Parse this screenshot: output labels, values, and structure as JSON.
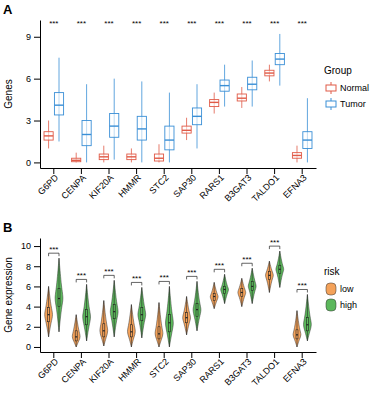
{
  "chart_data": [
    {
      "type": "box",
      "title": "A",
      "y_label": "Genes",
      "categories": [
        "G6PD",
        "CENPA",
        "KIF20A",
        "HMMR",
        "STC2",
        "SAP30",
        "RARS1",
        "B3GAT3",
        "TALDO1",
        "EFNA3"
      ],
      "legend": "right",
      "legend_title": "Group",
      "annotations": [
        "***",
        "***",
        "***",
        "***",
        "***",
        "***",
        "***",
        "***",
        "***",
        "***"
      ],
      "ylim": [
        -0.4,
        10.2
      ],
      "yticks": [
        0,
        3,
        6,
        9
      ],
      "series": [
        {
          "name": "Normal",
          "color": "#e05a47",
          "values": [
            {
              "min": 1.0,
              "q1": 1.6,
              "median": 1.9,
              "q3": 2.2,
              "max": 3.0
            },
            {
              "min": 0,
              "q1": 0.05,
              "median": 0.15,
              "q3": 0.3,
              "max": 0.7
            },
            {
              "min": 0,
              "q1": 0.2,
              "median": 0.4,
              "q3": 0.6,
              "max": 1.2
            },
            {
              "min": 0,
              "q1": 0.2,
              "median": 0.4,
              "q3": 0.6,
              "max": 1.0
            },
            {
              "min": 0,
              "q1": 0.1,
              "median": 0.3,
              "q3": 0.6,
              "max": 1.3
            },
            {
              "min": 1.6,
              "q1": 2.1,
              "median": 2.3,
              "q3": 2.6,
              "max": 3.2
            },
            {
              "min": 3.5,
              "q1": 4.0,
              "median": 4.3,
              "q3": 4.5,
              "max": 5.0
            },
            {
              "min": 3.9,
              "q1": 4.4,
              "median": 4.6,
              "q3": 4.9,
              "max": 5.4
            },
            {
              "min": 5.8,
              "q1": 6.2,
              "median": 6.4,
              "q3": 6.6,
              "max": 7.0
            },
            {
              "min": 0,
              "q1": 0.3,
              "median": 0.5,
              "q3": 0.7,
              "max": 1.2
            }
          ]
        },
        {
          "name": "Tumor",
          "color": "#3a8fd6",
          "values": [
            {
              "min": 1.5,
              "q1": 3.4,
              "median": 4.1,
              "q3": 5.0,
              "max": 7.5
            },
            {
              "min": 0,
              "q1": 1.2,
              "median": 2.0,
              "q3": 3.0,
              "max": 5.6
            },
            {
              "min": 0.2,
              "q1": 1.8,
              "median": 2.6,
              "q3": 3.5,
              "max": 6.0
            },
            {
              "min": 0,
              "q1": 1.6,
              "median": 2.4,
              "q3": 3.3,
              "max": 5.8
            },
            {
              "min": 0,
              "q1": 0.9,
              "median": 1.6,
              "q3": 2.6,
              "max": 5.0
            },
            {
              "min": 1.0,
              "q1": 2.7,
              "median": 3.3,
              "q3": 3.9,
              "max": 5.6
            },
            {
              "min": 4.0,
              "q1": 5.1,
              "median": 5.5,
              "q3": 5.9,
              "max": 7.0
            },
            {
              "min": 4.0,
              "q1": 5.2,
              "median": 5.6,
              "q3": 6.1,
              "max": 7.3
            },
            {
              "min": 5.5,
              "q1": 7.0,
              "median": 7.4,
              "q3": 7.8,
              "max": 9.2
            },
            {
              "min": 0,
              "q1": 1.0,
              "median": 1.6,
              "q3": 2.2,
              "max": 4.6
            }
          ]
        }
      ]
    },
    {
      "type": "violin",
      "title": "B",
      "y_label": "Gene expression",
      "categories": [
        "G6PD",
        "CENPA",
        "KIF20A",
        "HMMR",
        "STC2",
        "SAP30",
        "RARS1",
        "B3GAT3",
        "TALDO1",
        "EFNA3"
      ],
      "legend": "right",
      "legend_title": "risk",
      "annotations": [
        "***",
        "***",
        "***",
        "***",
        "***",
        "***",
        "***",
        "***",
        "***",
        "***"
      ],
      "ylim": [
        -0.5,
        10.8
      ],
      "yticks": [
        0,
        2,
        4,
        6,
        8,
        10
      ],
      "series": [
        {
          "name": "low",
          "color": "#f4a25a",
          "values": [
            {
              "min": 1.0,
              "q1": 2.5,
              "median": 3.2,
              "q3": 3.9,
              "max": 6.0
            },
            {
              "min": 0,
              "q1": 0.6,
              "median": 1.0,
              "q3": 1.6,
              "max": 3.2
            },
            {
              "min": 0.1,
              "q1": 1.0,
              "median": 1.6,
              "q3": 2.3,
              "max": 4.6
            },
            {
              "min": 0,
              "q1": 1.0,
              "median": 1.5,
              "q3": 2.2,
              "max": 4.2
            },
            {
              "min": 0,
              "q1": 0.8,
              "median": 1.3,
              "q3": 2.0,
              "max": 4.4
            },
            {
              "min": 1.2,
              "q1": 2.4,
              "median": 2.9,
              "q3": 3.4,
              "max": 5.0
            },
            {
              "min": 3.8,
              "q1": 4.6,
              "median": 5.0,
              "q3": 5.3,
              "max": 6.4
            },
            {
              "min": 4.0,
              "q1": 5.0,
              "median": 5.4,
              "q3": 5.8,
              "max": 6.8
            },
            {
              "min": 5.4,
              "q1": 6.7,
              "median": 7.1,
              "q3": 7.5,
              "max": 8.5
            },
            {
              "min": 0,
              "q1": 0.8,
              "median": 1.2,
              "q3": 1.7,
              "max": 3.6
            }
          ]
        },
        {
          "name": "high",
          "color": "#5cb85c",
          "values": [
            {
              "min": 1.5,
              "q1": 4.0,
              "median": 4.8,
              "q3": 5.8,
              "max": 8.8
            },
            {
              "min": 0.6,
              "q1": 2.2,
              "median": 3.0,
              "q3": 3.7,
              "max": 6.2
            },
            {
              "min": 1.0,
              "q1": 2.8,
              "median": 3.5,
              "q3": 4.2,
              "max": 6.6
            },
            {
              "min": 0.9,
              "q1": 2.6,
              "median": 3.2,
              "q3": 3.9,
              "max": 5.9
            },
            {
              "min": 0,
              "q1": 1.5,
              "median": 2.4,
              "q3": 3.2,
              "max": 6.0
            },
            {
              "min": 1.6,
              "q1": 3.0,
              "median": 3.7,
              "q3": 4.3,
              "max": 6.5
            },
            {
              "min": 4.3,
              "q1": 5.3,
              "median": 5.7,
              "q3": 6.0,
              "max": 7.2
            },
            {
              "min": 4.3,
              "q1": 5.6,
              "median": 6.0,
              "q3": 6.5,
              "max": 7.8
            },
            {
              "min": 5.9,
              "q1": 7.3,
              "median": 7.7,
              "q3": 8.1,
              "max": 9.5
            },
            {
              "min": 0.6,
              "q1": 1.6,
              "median": 2.2,
              "q3": 2.9,
              "max": 5.2
            }
          ]
        }
      ]
    }
  ]
}
